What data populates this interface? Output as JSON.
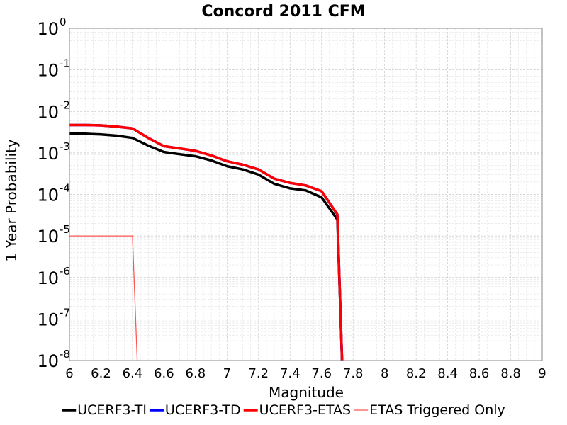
{
  "chart_data": {
    "type": "line",
    "title": "Concord 2011 CFM",
    "xlabel": "Magnitude",
    "ylabel": "1 Year Probability",
    "xlim": [
      6,
      9
    ],
    "ylim": [
      1e-08,
      1
    ],
    "yscale": "log",
    "x_ticks": [
      "6",
      "6.2",
      "6.4",
      "6.6",
      "6.8",
      "7",
      "7.2",
      "7.4",
      "7.6",
      "7.8",
      "8",
      "8.2",
      "8.4",
      "8.6",
      "8.8",
      "9"
    ],
    "y_ticks": [
      {
        "base": "10",
        "exp": "0"
      },
      {
        "base": "10",
        "exp": "-1"
      },
      {
        "base": "10",
        "exp": "-2"
      },
      {
        "base": "10",
        "exp": "-3"
      },
      {
        "base": "10",
        "exp": "-4"
      },
      {
        "base": "10",
        "exp": "-5"
      },
      {
        "base": "10",
        "exp": "-6"
      },
      {
        "base": "10",
        "exp": "-7"
      },
      {
        "base": "10",
        "exp": "-8"
      }
    ],
    "grid": true,
    "legend_position": "bottom",
    "series": [
      {
        "name": "UCERF3-TI",
        "color": "#000000",
        "width": "thick",
        "x": [
          6.0,
          6.1,
          6.2,
          6.3,
          6.4,
          6.5,
          6.6,
          6.7,
          6.8,
          6.9,
          7.0,
          7.1,
          7.2,
          7.3,
          7.4,
          7.5,
          7.6,
          7.7,
          7.73
        ],
        "y": [
          0.0029,
          0.0029,
          0.0028,
          0.0026,
          0.0023,
          0.0015,
          0.00105,
          0.00093,
          0.00083,
          0.00066,
          0.00048,
          0.0004,
          0.0003,
          0.00018,
          0.00014,
          0.000125,
          8.5e-05,
          2.5e-05,
          1e-08
        ]
      },
      {
        "name": "UCERF3-TD",
        "color": "#0000ff",
        "width": "thick",
        "x": [
          6.0,
          6.1,
          6.2,
          6.3,
          6.4,
          6.5,
          6.6,
          6.7,
          6.8,
          6.9,
          7.0,
          7.1,
          7.2,
          7.3,
          7.4,
          7.5,
          7.6,
          7.7,
          7.73
        ],
        "y": [
          0.0047,
          0.0047,
          0.0046,
          0.0043,
          0.0039,
          0.0023,
          0.00145,
          0.00128,
          0.00112,
          0.00087,
          0.00063,
          0.00052,
          0.0004,
          0.00024,
          0.00019,
          0.000165,
          0.00012,
          3.3e-05,
          1e-08
        ]
      },
      {
        "name": "UCERF3-ETAS",
        "color": "#ff0000",
        "width": "thick",
        "x": [
          6.0,
          6.1,
          6.2,
          6.3,
          6.4,
          6.5,
          6.6,
          6.7,
          6.8,
          6.9,
          7.0,
          7.1,
          7.2,
          7.3,
          7.4,
          7.5,
          7.6,
          7.7,
          7.73
        ],
        "y": [
          0.0047,
          0.0047,
          0.0046,
          0.0043,
          0.0039,
          0.0023,
          0.00145,
          0.00128,
          0.00112,
          0.00087,
          0.00063,
          0.00052,
          0.0004,
          0.00024,
          0.00019,
          0.000165,
          0.00012,
          3.3e-05,
          1e-08
        ]
      },
      {
        "name": "ETAS Triggered Only",
        "color": "#ff5555",
        "width": "thin",
        "x": [
          6.0,
          6.4,
          6.43
        ],
        "y": [
          1e-05,
          1e-05,
          1e-08
        ]
      }
    ]
  }
}
